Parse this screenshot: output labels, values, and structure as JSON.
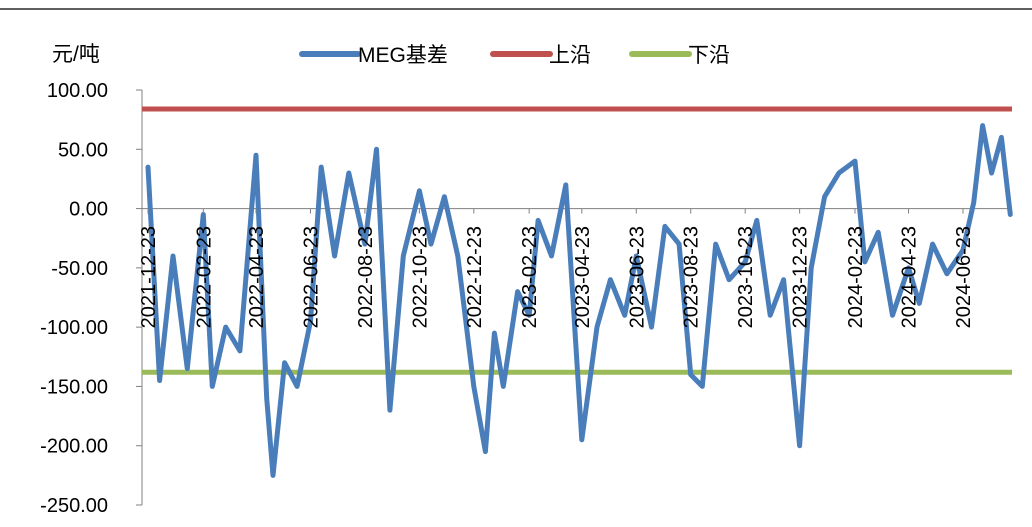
{
  "chart_data": {
    "type": "line",
    "ylabel": "元/吨",
    "ylim": [
      -250,
      100
    ],
    "yticks": [
      "100.00",
      "50.00",
      "0.00",
      "-50.00",
      "-100.00",
      "-150.00",
      "-200.00",
      "-250.00"
    ],
    "yvalues": [
      100,
      50,
      0,
      -50,
      -100,
      -150,
      -200,
      -250
    ],
    "xticks": [
      "2021-12-23",
      "2022-02-23",
      "2022-04-23",
      "2022-06-23",
      "2022-08-23",
      "2022-10-23",
      "2022-12-23",
      "2023-02-23",
      "2023-04-23",
      "2023-06-23",
      "2023-08-23",
      "2023-10-23",
      "2023-12-23",
      "2024-02-23",
      "2024-04-23",
      "2024-06-23"
    ],
    "legend_position": "top",
    "series": [
      {
        "name": "MEG基差",
        "color": "#4a7ebb",
        "x": [
          "2021-12-23",
          "2022-01-05",
          "2022-01-20",
          "2022-02-05",
          "2022-02-23",
          "2022-03-05",
          "2022-03-20",
          "2022-04-05",
          "2022-04-23",
          "2022-05-05",
          "2022-05-12",
          "2022-05-25",
          "2022-06-08",
          "2022-06-23",
          "2022-07-05",
          "2022-07-20",
          "2022-08-05",
          "2022-08-23",
          "2022-09-05",
          "2022-09-20",
          "2022-10-05",
          "2022-10-23",
          "2022-11-05",
          "2022-11-20",
          "2022-12-05",
          "2022-12-23",
          "2023-01-05",
          "2023-01-15",
          "2023-01-25",
          "2023-02-10",
          "2023-02-23",
          "2023-03-05",
          "2023-03-20",
          "2023-04-05",
          "2023-04-23",
          "2023-05-10",
          "2023-05-25",
          "2023-06-10",
          "2023-06-23",
          "2023-07-10",
          "2023-07-25",
          "2023-08-10",
          "2023-08-23",
          "2023-09-05",
          "2023-09-20",
          "2023-10-05",
          "2023-10-23",
          "2023-11-05",
          "2023-11-20",
          "2023-12-05",
          "2023-12-23",
          "2024-01-05",
          "2024-01-20",
          "2024-02-05",
          "2024-02-23",
          "2024-03-05",
          "2024-03-20",
          "2024-04-05",
          "2024-04-23",
          "2024-05-05",
          "2024-05-20",
          "2024-06-05",
          "2024-06-23",
          "2024-07-05",
          "2024-07-15",
          "2024-07-25",
          "2024-08-05",
          "2024-08-15"
        ],
        "values": [
          35,
          -145,
          -40,
          -135,
          -5,
          -150,
          -100,
          -120,
          45,
          -160,
          -225,
          -130,
          -150,
          -95,
          35,
          -40,
          30,
          -30,
          50,
          -170,
          -40,
          15,
          -30,
          10,
          -40,
          -150,
          -205,
          -105,
          -150,
          -70,
          -90,
          -10,
          -40,
          20,
          -195,
          -100,
          -60,
          -90,
          -40,
          -100,
          -15,
          -30,
          -140,
          -150,
          -30,
          -60,
          -45,
          -10,
          -90,
          -60,
          -200,
          -50,
          10,
          30,
          40,
          -45,
          -20,
          -90,
          -50,
          -80,
          -30,
          -55,
          -35,
          5,
          70,
          30,
          60,
          -5
        ]
      },
      {
        "name": "上沿",
        "color": "#c0504d",
        "x": [
          "2021-12-23",
          "2024-08-15"
        ],
        "values": [
          84,
          84
        ]
      },
      {
        "name": "下沿",
        "color": "#9bbb59",
        "x": [
          "2021-12-23",
          "2024-08-15"
        ],
        "values": [
          -138,
          -138
        ]
      }
    ]
  }
}
